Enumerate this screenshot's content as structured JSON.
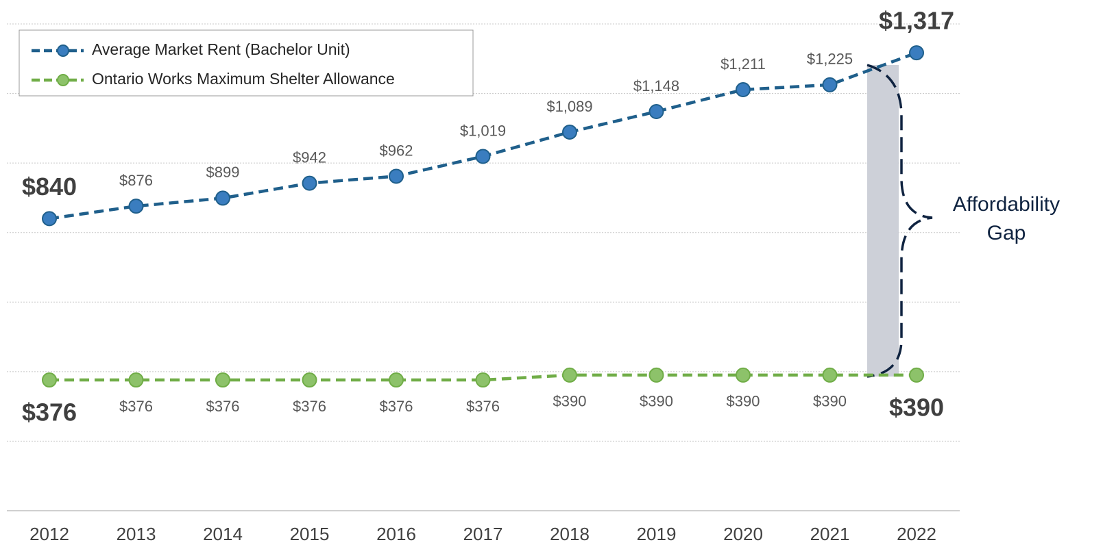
{
  "chart_data": {
    "type": "line",
    "categories": [
      "2012",
      "2013",
      "2014",
      "2015",
      "2016",
      "2017",
      "2018",
      "2019",
      "2020",
      "2021",
      "2022"
    ],
    "series": [
      {
        "name": "Average Market Rent (Bachelor Unit)",
        "color": "#1f5f8b",
        "marker_color": "#3a7dbf",
        "values": [
          840,
          876,
          899,
          942,
          962,
          1019,
          1089,
          1148,
          1211,
          1225,
          1317
        ],
        "value_labels": [
          "$840",
          "$876",
          "$899",
          "$942",
          "$962",
          "$1,019",
          "$1,089",
          "$1,148",
          "$1,211",
          "$1,225",
          "$1,317"
        ]
      },
      {
        "name": "Ontario Works Maximum Shelter Allowance",
        "color": "#70ad47",
        "marker_color": "#8dc26a",
        "values": [
          376,
          376,
          376,
          376,
          376,
          376,
          390,
          390,
          390,
          390,
          390
        ],
        "value_labels": [
          "$376",
          "$376",
          "$376",
          "$376",
          "$376",
          "$376",
          "$390",
          "$390",
          "$390",
          "$390",
          "$390"
        ]
      }
    ],
    "ylim": [
      0,
      1400
    ],
    "yticks": [
      0,
      200,
      400,
      600,
      800,
      1000,
      1200,
      1400
    ],
    "grid": true,
    "annotation": [
      "Affordability",
      "Gap"
    ],
    "legend": "upper left"
  }
}
